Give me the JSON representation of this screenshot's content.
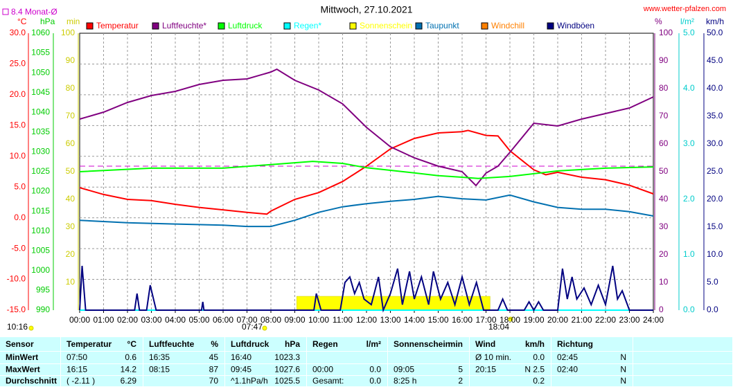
{
  "chart_data": {
    "type": "line",
    "title": "Mittwoch, 27.10.2021",
    "source": "www.wetter-pfalzen.com",
    "reference": {
      "value": 8.4,
      "label": "8.4 Monat-Ø",
      "color": "#cc00cc",
      "axis": "temp"
    },
    "moon": "10:16",
    "sunrise": "07:47",
    "sunset": "18:04",
    "grid": true,
    "xlim": [
      0,
      24
    ],
    "xticks": [
      {
        "value": 0,
        "label": "00:00"
      },
      {
        "value": 1,
        "label": "01:00"
      },
      {
        "value": 2,
        "label": "02:00"
      },
      {
        "value": 3,
        "label": "03:00"
      },
      {
        "value": 4,
        "label": "04:00"
      },
      {
        "value": 5,
        "label": "05:00"
      },
      {
        "value": 6,
        "label": "06:00"
      },
      {
        "value": 7,
        "label": "07:00"
      },
      {
        "value": 8,
        "label": "08:00"
      },
      {
        "value": 9,
        "label": "09:00"
      },
      {
        "value": 10,
        "label": "10:00"
      },
      {
        "value": 11,
        "label": "11:00"
      },
      {
        "value": 12,
        "label": "12:00"
      },
      {
        "value": 13,
        "label": "13:00"
      },
      {
        "value": 14,
        "label": "14:00"
      },
      {
        "value": 15,
        "label": "15:00"
      },
      {
        "value": 16,
        "label": "16:00"
      },
      {
        "value": 17,
        "label": "17:00"
      },
      {
        "value": 18,
        "label": "18:00"
      },
      {
        "value": 19,
        "label": "19:00"
      },
      {
        "value": 20,
        "label": "20:00"
      },
      {
        "value": 21,
        "label": "21:00"
      },
      {
        "value": 22,
        "label": "22:00"
      },
      {
        "value": 23,
        "label": "23:00"
      },
      {
        "value": 24,
        "label": "24:00"
      }
    ],
    "axes": {
      "temp": {
        "label": "°C",
        "color": "#ff0000",
        "lim": [
          -15,
          30
        ],
        "ticks": [
          {
            "value": -15,
            "label": "-15.0"
          },
          {
            "value": -10,
            "label": "-10.0"
          },
          {
            "value": -5,
            "label": "-5.0"
          },
          {
            "value": 0,
            "label": "0.0"
          },
          {
            "value": 5,
            "label": "5.0"
          },
          {
            "value": 10,
            "label": "10.0"
          },
          {
            "value": 15,
            "label": "15.0"
          },
          {
            "value": 20,
            "label": "20.0"
          },
          {
            "value": 25,
            "label": "25.0"
          },
          {
            "value": 30,
            "label": "30.0"
          }
        ]
      },
      "hpa": {
        "label": "hPa",
        "color": "#00cc00",
        "lim": [
          990,
          1060
        ],
        "ticks": [
          990,
          995,
          1000,
          1005,
          1010,
          1015,
          1020,
          1025,
          1030,
          1035,
          1040,
          1045,
          1050,
          1055,
          1060
        ]
      },
      "min": {
        "label": "min",
        "color": "#cccc00",
        "lim": [
          0,
          100
        ],
        "ticks": [
          10,
          20,
          30,
          40,
          50,
          60,
          70,
          80,
          90,
          100
        ]
      },
      "pct": {
        "label": "%",
        "color": "#800080",
        "lim": [
          0,
          100
        ],
        "ticks": [
          0,
          10,
          20,
          30,
          40,
          50,
          60,
          70,
          80,
          90,
          100
        ]
      },
      "rain": {
        "label": "l/m²",
        "color": "#00cccc",
        "lim": [
          0,
          5
        ],
        "ticks": [
          {
            "value": 0,
            "label": "0.0"
          },
          {
            "value": 1,
            "label": "1.0"
          },
          {
            "value": 2,
            "label": "2.0"
          },
          {
            "value": 3,
            "label": "3.0"
          },
          {
            "value": 4,
            "label": "4.0"
          },
          {
            "value": 5,
            "label": "5.0"
          }
        ]
      },
      "wind": {
        "label": "km/h",
        "color": "#000080",
        "lim": [
          0,
          50
        ],
        "ticks": [
          {
            "value": 0,
            "label": "0.0"
          },
          {
            "value": 5,
            "label": "5.0"
          },
          {
            "value": 10,
            "label": "10.0"
          },
          {
            "value": 15,
            "label": "15.0"
          },
          {
            "value": 20,
            "label": "20.0"
          },
          {
            "value": 25,
            "label": "25.0"
          },
          {
            "value": 30,
            "label": "30.0"
          },
          {
            "value": 35,
            "label": "35.0"
          },
          {
            "value": 40,
            "label": "40.0"
          },
          {
            "value": 45,
            "label": "45.0"
          },
          {
            "value": 50,
            "label": "50.0"
          }
        ]
      }
    },
    "series": [
      {
        "name": "Temperatur",
        "color": "#ff0000",
        "axis": "temp",
        "x": [
          0,
          1,
          2,
          3,
          4,
          5,
          6,
          7,
          7.83,
          8,
          9,
          10,
          11,
          12,
          13,
          14,
          15,
          16,
          16.25,
          17,
          17.5,
          18,
          19,
          19.5,
          20,
          21,
          22,
          23,
          24
        ],
        "values": [
          4.9,
          3.8,
          3.0,
          2.8,
          2.2,
          1.7,
          1.3,
          0.9,
          0.6,
          1.1,
          3.0,
          4.1,
          5.9,
          8.4,
          11.2,
          12.9,
          13.8,
          14.0,
          14.2,
          13.4,
          13.3,
          10.9,
          7.8,
          7.0,
          7.4,
          6.6,
          6.2,
          5.3,
          3.9
        ]
      },
      {
        "name": "Luftfeuchte*",
        "color": "#800080",
        "axis": "pct",
        "x": [
          0,
          1,
          2,
          3,
          4,
          5,
          6,
          7,
          8,
          8.25,
          9,
          10,
          11,
          12,
          13,
          14,
          15,
          16,
          16.58,
          17,
          17.5,
          18,
          19,
          20,
          21,
          22,
          23,
          24
        ],
        "values": [
          69,
          71.5,
          75,
          77.5,
          79,
          81.5,
          83,
          83.5,
          86,
          87,
          83,
          79.5,
          74.5,
          66,
          59,
          55,
          52,
          50,
          45,
          49.5,
          52,
          57,
          67.5,
          66.5,
          69,
          71,
          73,
          77
        ]
      },
      {
        "name": "Luftdruck",
        "color": "#00ff00",
        "axis": "hpa",
        "x": [
          0,
          3,
          6,
          8,
          9.75,
          11,
          12,
          14,
          15,
          16,
          16.67,
          18,
          20,
          22,
          24
        ],
        "values": [
          1025.0,
          1025.9,
          1025.9,
          1026.8,
          1027.6,
          1027.1,
          1026.0,
          1024.7,
          1024.0,
          1023.6,
          1023.3,
          1023.8,
          1025.2,
          1025.9,
          1026.2
        ]
      },
      {
        "name": "Regen*",
        "color": "#00ffff",
        "axis": "rain",
        "x": [
          0,
          24
        ],
        "values": [
          0,
          0
        ]
      },
      {
        "name": "Sonnenschein",
        "color": "#ffff00",
        "axis": "min",
        "kind": "bar",
        "bins": [
          9.08,
          17.17
        ],
        "values": [
          5
        ]
      },
      {
        "name": "Taupunkt",
        "color": "#0070b0",
        "axis": "temp",
        "x": [
          0,
          2,
          4,
          6,
          7,
          8,
          9,
          10,
          11,
          12,
          13,
          14,
          15,
          16,
          17,
          18,
          19,
          20,
          21,
          22,
          23,
          24
        ],
        "values": [
          -0.4,
          -0.8,
          -1.0,
          -1.2,
          -1.4,
          -1.4,
          -0.4,
          0.9,
          1.8,
          2.3,
          2.7,
          3.0,
          3.5,
          3.1,
          2.9,
          3.7,
          2.6,
          1.7,
          1.4,
          1.4,
          1.0,
          0.3
        ]
      },
      {
        "name": "Windchill",
        "color": "#ff8000",
        "axis": "temp"
      },
      {
        "name": "Windböen",
        "color": "#000080",
        "axis": "wind",
        "x": [
          0,
          0.1,
          0.25,
          2.3,
          2.4,
          2.5,
          2.8,
          2.95,
          3.2,
          5.1,
          5.15,
          5.2,
          9.8,
          9.9,
          10.1,
          10.9,
          11.1,
          11.3,
          11.5,
          11.7,
          11.9,
          12.2,
          12.5,
          12.7,
          13,
          13.3,
          13.5,
          13.8,
          14,
          14.3,
          14.6,
          14.8,
          15.1,
          15.4,
          15.7,
          16,
          16.3,
          16.6,
          16.9,
          17.5,
          17.7,
          17.9,
          18.6,
          18.8,
          19,
          19.2,
          19.4,
          20,
          20.2,
          20.4,
          20.6,
          20.8,
          21.1,
          21.4,
          21.7,
          22,
          22.3,
          22.5,
          22.7,
          23,
          24
        ],
        "values": [
          0,
          8,
          0,
          0,
          3,
          0,
          0,
          4.5,
          0,
          0,
          1.5,
          0,
          0,
          3,
          0,
          0,
          5,
          6,
          3,
          5,
          2,
          1,
          6,
          0,
          3,
          7.5,
          1,
          7,
          2,
          6,
          1,
          7,
          2,
          5,
          1,
          6,
          1,
          5,
          0,
          0,
          2,
          0,
          0,
          1.5,
          0,
          1.5,
          0,
          0,
          7.5,
          2,
          6,
          2,
          4,
          1,
          4.5,
          1,
          8,
          2,
          3.5,
          0,
          0
        ]
      }
    ]
  },
  "table": {
    "header": [
      "Sensor",
      "Temperatur",
      "°C",
      "Luftfeuchte",
      "%",
      "Luftdruck",
      "hPa",
      "Regen",
      "l/m²",
      "Sonnenschein",
      "min",
      "Wind",
      "km/h",
      "Richtung",
      null
    ],
    "rows": [
      [
        "MinWert",
        "07:50",
        "0.6",
        "16:35",
        "45",
        "16:40",
        "1023.3",
        null,
        null,
        null,
        null,
        "Ø 10 min.",
        "0.0",
        "02:45",
        "N"
      ],
      [
        "MaxWert",
        "16:15",
        "14.2",
        "08:15",
        "87",
        "09:45",
        "1027.6",
        "00:00",
        "0.0",
        "09:05",
        "5",
        "20:15",
        "N 2.5",
        "02:40",
        "N"
      ],
      [
        "Durchschnitt",
        "( -2.11 )",
        "6.29",
        null,
        "70",
        "^1.1hPa/h",
        "1025.5",
        "Gesamt:",
        "0.0",
        "8:25 h",
        "2",
        null,
        "0.2",
        null,
        "N"
      ]
    ]
  }
}
